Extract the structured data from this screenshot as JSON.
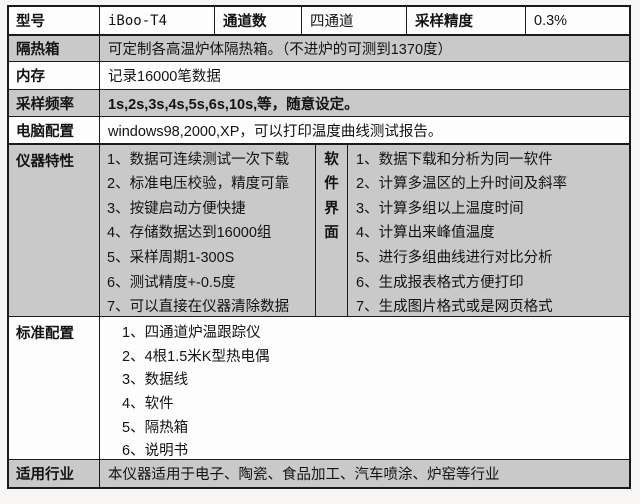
{
  "colors": {
    "row_shade": "#c9c9c9",
    "row_plain": "#fdfdfd",
    "border": "#1b1b1b",
    "page_background": "#f7f6f4"
  },
  "table": {
    "row_model": {
      "label": "型号",
      "model_value": "iBoo-T4",
      "channels_label": "通道数",
      "channels_value": "四通道",
      "precision_label": "采样精度",
      "precision_value": "0.3%"
    },
    "row_insulation": {
      "label": "隔热箱",
      "value": "可定制各高温炉体隔热箱。（不进炉的可测到1370度）"
    },
    "row_memory": {
      "label": "内存",
      "value": "记录16000笔数据"
    },
    "row_sampling": {
      "label": "采样频率",
      "value": "1s,2s,3s,4s,5s,6s,10s,等，随意设定。"
    },
    "row_computer": {
      "label": "电脑配置",
      "value": "windows98,2000,XP，可以打印温度曲线测试报告。"
    },
    "features": {
      "label": "仪器特性",
      "items": [
        "1、数据可连续测试一次下载",
        "2、标准电压校验，精度可靠",
        "3、按键启动方便快捷",
        "4、存储数据达到16000组",
        "5、采样周期1-300S",
        "6、测试精度+-0.5度",
        "7、可以直接在仪器清除数据"
      ]
    },
    "software": {
      "label_chars": [
        "软",
        "件",
        "界",
        "面"
      ],
      "items": [
        "1、数据下载和分析为同一软件",
        "2、计算多温区的上升时间及斜率",
        "3、计算多组以上温度时间",
        "4、计算出来峰值温度",
        "5、进行多组曲线进行对比分析",
        "6、生成报表格式方便打印",
        "7、生成图片格式或是网页格式"
      ]
    },
    "standard": {
      "label": "标准配置",
      "items": [
        "1、四通道炉温跟踪仪",
        "2、4根1.5米K型热电偶",
        "3、数据线",
        "4、软件",
        "5、隔热箱",
        "6、说明书"
      ]
    },
    "industry": {
      "label": "适用行业",
      "value": "本仪器适用于电子、陶瓷、食品加工、汽车喷涂、炉窑等行业"
    }
  }
}
